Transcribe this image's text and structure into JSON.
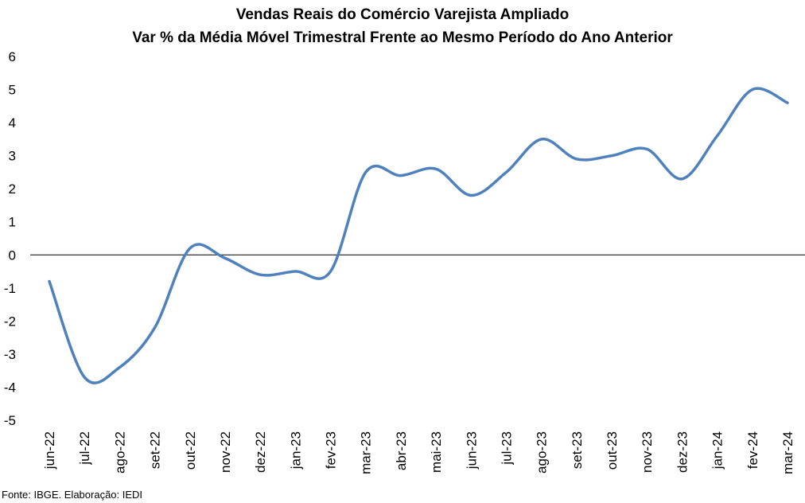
{
  "chart_data": {
    "type": "line",
    "title": "Vendas Reais do Comércio Varejista Ampliado",
    "subtitle": "Var % da Média Móvel Trimestral Frente ao Mesmo Período do Ano Anterior",
    "xlabel": "",
    "ylabel": "",
    "ylim": [
      -5,
      6
    ],
    "yticks": [
      "6",
      "5",
      "4",
      "3",
      "2",
      "1",
      "0",
      "-1",
      "-2",
      "-3",
      "-4",
      "-5"
    ],
    "categories": [
      "jun-22",
      "jul-22",
      "ago-22",
      "set-22",
      "out-22",
      "nov-22",
      "dez-22",
      "jan-23",
      "fev-23",
      "mar-23",
      "abr-23",
      "mai-23",
      "jun-23",
      "jul-23",
      "ago-23",
      "set-23",
      "out-23",
      "nov-23",
      "dez-23",
      "jan-24",
      "fev-24",
      "mar-24"
    ],
    "series": [
      {
        "values": [
          -0.8,
          -3.7,
          -3.4,
          -2.2,
          0.2,
          -0.1,
          -0.6,
          -0.5,
          -0.5,
          2.5,
          2.4,
          2.6,
          1.8,
          2.5,
          3.5,
          2.9,
          3.0,
          3.2,
          2.3,
          3.6,
          5.0,
          4.6
        ],
        "color": "#4f81bd"
      }
    ],
    "grid": false,
    "zero_line": true,
    "source": "Fonte: IBGE. Elaboração: IEDI"
  }
}
